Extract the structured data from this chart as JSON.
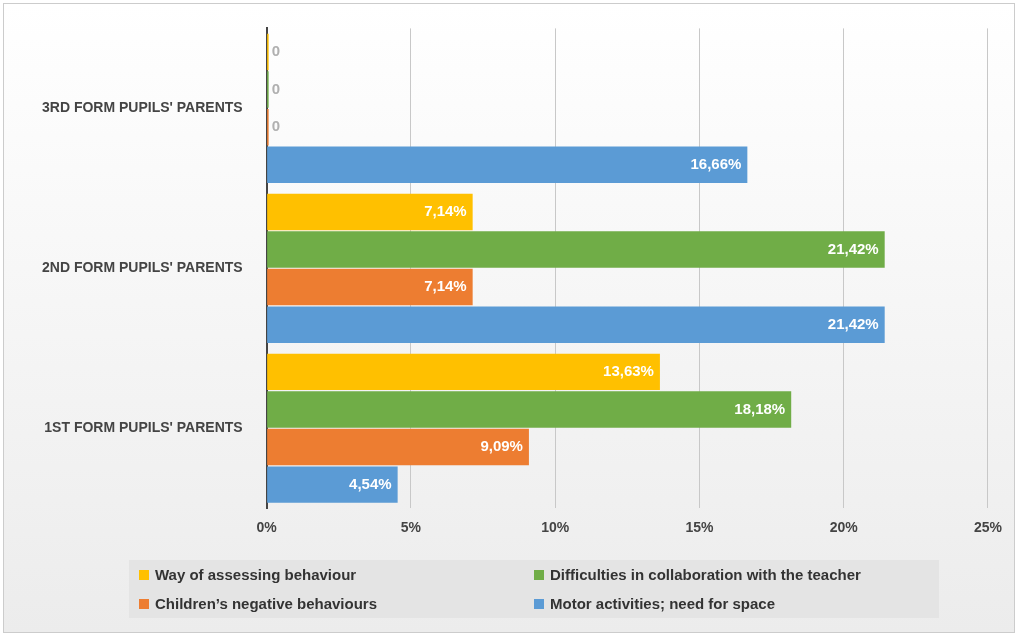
{
  "chart_data": {
    "type": "bar",
    "orientation": "horizontal",
    "categories": [
      "3RD FORM PUPILS' PARENTS",
      "2ND FORM PUPILS' PARENTS",
      "1ST FORM PUPILS' PARENTS"
    ],
    "series": [
      {
        "name": "Way of assessing behaviour",
        "color": "#ffc000",
        "values": [
          0,
          7.14,
          13.63
        ],
        "value_labels": [
          "0",
          "7,14%",
          "13,63%"
        ]
      },
      {
        "name": "Difficulties in collaboration with the teacher",
        "color": "#70ad47",
        "values": [
          0,
          21.42,
          18.18
        ],
        "value_labels": [
          "0",
          "21,42%",
          "18,18%"
        ]
      },
      {
        "name": "Children’s negative behaviours",
        "color": "#ed7d31",
        "values": [
          0,
          7.14,
          9.09
        ],
        "value_labels": [
          "0",
          "7,14%",
          "9,09%"
        ]
      },
      {
        "name": "Motor activities; need for space",
        "color": "#5b9bd5",
        "values": [
          16.66,
          21.42,
          4.54
        ],
        "value_labels": [
          "16,66%",
          "21,42%",
          "4,54%"
        ]
      }
    ],
    "xlim": [
      0,
      25
    ],
    "xticks": [
      {
        "value": 0,
        "label": "0%"
      },
      {
        "value": 5,
        "label": "5%"
      },
      {
        "value": 10,
        "label": "10%"
      },
      {
        "value": 15,
        "label": "15%"
      },
      {
        "value": 20,
        "label": "20%"
      },
      {
        "value": 25,
        "label": "25%"
      }
    ],
    "grid": "x",
    "legend": "bottom"
  }
}
